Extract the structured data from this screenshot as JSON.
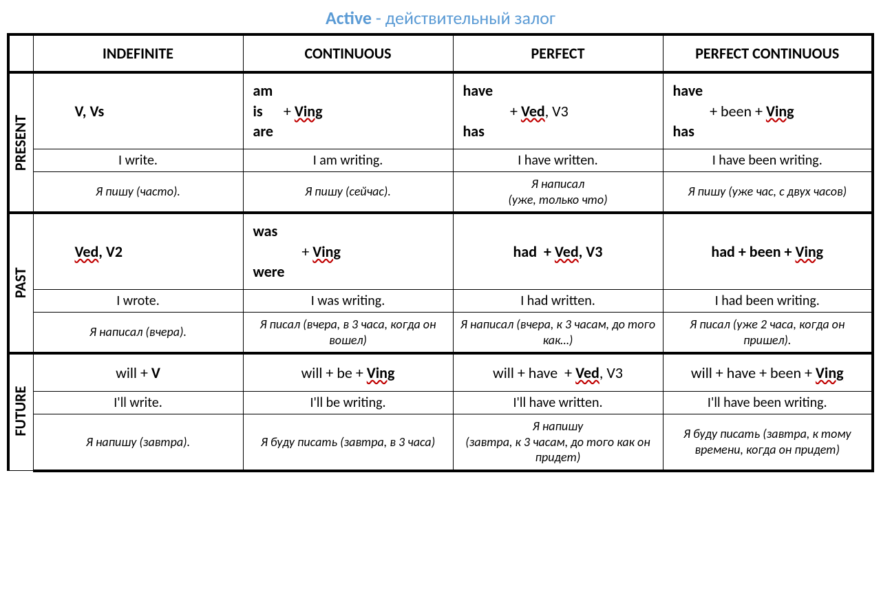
{
  "title": {
    "active": "Active",
    "sub": " - действительный залог"
  },
  "headers": {
    "indefinite": "INDEFINITE",
    "continuous": "CONTINUOUS",
    "perfect": "PERFECT",
    "perfect_continuous": "PERFECT CONTINUOUS"
  },
  "tenses": {
    "present": "PRESENT",
    "past": "PAST",
    "future": "FUTURE"
  },
  "present": {
    "indefinite": {
      "formula_html": "<b>V, Vs</b>",
      "example": "I write.",
      "translation": "Я пишу (часто)."
    },
    "continuous": {
      "formula_html": "<span class='stack'>am<br>is<br>are</span><span class='mid'>&nbsp;&nbsp;&nbsp;+ <span class='underline-red'><b>Ving</b></span></span>",
      "example": "I am writing.",
      "translation": "Я пишу (сейчас)."
    },
    "perfect": {
      "formula_html": "<span class='stack'>have<br>&nbsp;<br>has</span><span class='mid'>&nbsp;&nbsp;&nbsp;&nbsp;&nbsp;+ <span class='underline-red'><b>Ved</b></span>, V3</span>",
      "example": "I have written.",
      "translation": "Я написал<br>(уже, только что)"
    },
    "perfect_continuous": {
      "formula_html": "<span class='stack'>have<br>&nbsp;<br>has</span><span class='mid'>&nbsp;&nbsp;+ been + <span class='underline-red'><b>Ving</b></span></span>",
      "example": "I have been writing.",
      "translation": "Я пишу (уже час, с двух часов)"
    }
  },
  "past": {
    "indefinite": {
      "formula_html": "<b><span class='underline-red'>Ved</span>, V2</b>",
      "example": "I wrote.",
      "translation": "Я написал (вчера)."
    },
    "continuous": {
      "formula_html": "<span class='stack'>was<br>&nbsp;<br>were</span><span class='mid'>&nbsp;&nbsp;&nbsp;&nbsp;&nbsp;+ <span class='underline-red'><b>Ving</b></span></span>",
      "example": "I was writing.",
      "translation": "Я писал (вчера, в 3 часа, когда он вошел)"
    },
    "perfect": {
      "formula_html": "<b>had &nbsp;+ <span class='underline-red'>Ved</span>, V3</b>",
      "example": "I had written.",
      "translation": "Я написал (вчера, к 3 часам, до того как…)"
    },
    "perfect_continuous": {
      "formula_html": "<b>had + been + <span class='underline-red'>Ving</span></b>",
      "example": "I had been writing.",
      "translation": "Я писал (уже 2 часа, когда он пришел)."
    }
  },
  "future": {
    "indefinite": {
      "formula_html": "will + <b>V</b>",
      "example": "I'll write.",
      "translation": "Я напишу (завтра)."
    },
    "continuous": {
      "formula_html": "will + be + <b><span class='underline-red'>Ving</span></b>",
      "example": "I'll be writing.",
      "translation": "Я буду писать (завтра, в 3 часа)"
    },
    "perfect": {
      "formula_html": "will + have &nbsp;+ <span class='underline-red'><b>Ved</b></span>, V3",
      "example": "I'll have written.",
      "translation": "Я напишу<br>(завтра, к 3 часам, до того как он придет)"
    },
    "perfect_continuous": {
      "formula_html": "will + have + been + <b><span class='underline-red'>Ving</span></b>",
      "example": "I'll have been writing.",
      "translation": "Я буду писать (завтра, к тому времени, когда он придет)"
    }
  }
}
